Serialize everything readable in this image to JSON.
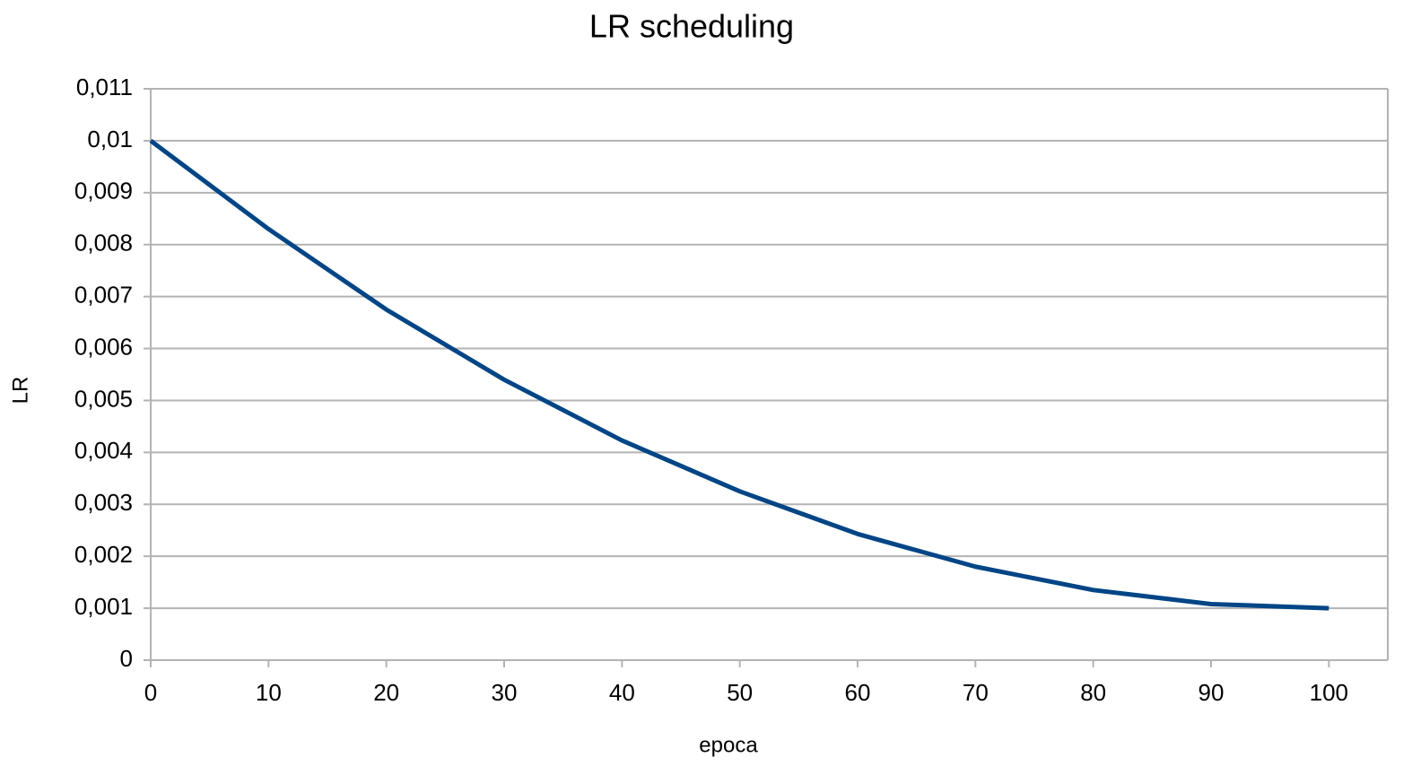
{
  "chart_data": {
    "type": "line",
    "title": "LR scheduling",
    "x_label": "epoca",
    "y_label": "LR",
    "x": [
      0,
      10,
      20,
      30,
      40,
      50,
      60,
      70,
      80,
      90,
      100
    ],
    "series": [
      {
        "name": "LR",
        "color": "#004586",
        "values": [
          0.01,
          0.0083,
          0.00675,
          0.0054,
          0.00423,
          0.00325,
          0.00243,
          0.0018,
          0.00135,
          0.00108,
          0.001
        ]
      }
    ],
    "xlim": [
      0,
      105
    ],
    "xticks": [
      0,
      10,
      20,
      30,
      40,
      50,
      60,
      70,
      80,
      90,
      100
    ],
    "ylim": [
      0,
      0.011
    ],
    "yticks": [
      0,
      {
        "value": 0.001,
        "label": "0,001"
      },
      {
        "value": 0.002,
        "label": "0,002"
      },
      {
        "value": 0.003,
        "label": "0,003"
      },
      {
        "value": 0.004,
        "label": "0,004"
      },
      {
        "value": 0.005,
        "label": "0,005"
      },
      {
        "value": 0.006,
        "label": "0,006"
      },
      {
        "value": 0.007,
        "label": "0,007"
      },
      {
        "value": 0.008,
        "label": "0,008"
      },
      {
        "value": 0.009,
        "label": "0,009"
      },
      {
        "value": 0.01,
        "label": "0,01"
      },
      {
        "value": 0.011,
        "label": "0,011"
      }
    ],
    "grid": true
  }
}
